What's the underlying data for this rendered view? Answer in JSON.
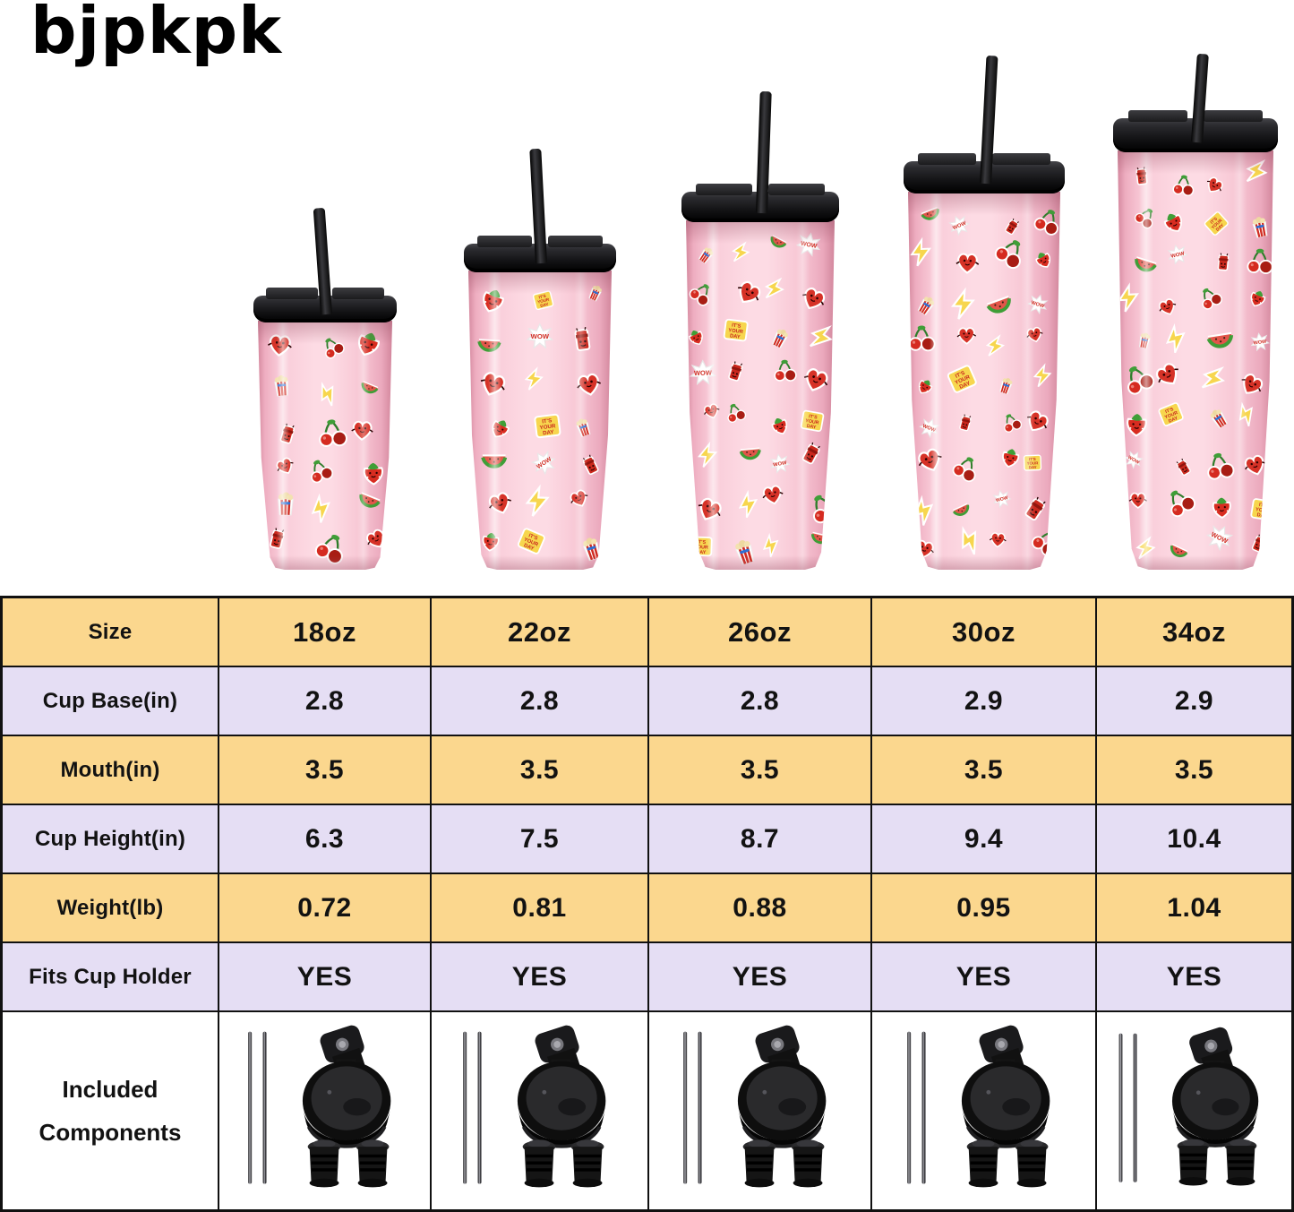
{
  "brand": {
    "logo_text": "bjpkpk"
  },
  "products": [
    {
      "size": "18oz",
      "cup_base_in": "2.8",
      "mouth_in": "3.5",
      "cup_height_in": "6.3",
      "weight_lb": "0.72",
      "fits_cup_holder": "YES"
    },
    {
      "size": "22oz",
      "cup_base_in": "2.8",
      "mouth_in": "3.5",
      "cup_height_in": "7.5",
      "weight_lb": "0.81",
      "fits_cup_holder": "YES"
    },
    {
      "size": "26oz",
      "cup_base_in": "2.8",
      "mouth_in": "3.5",
      "cup_height_in": "8.7",
      "weight_lb": "0.88",
      "fits_cup_holder": "YES"
    },
    {
      "size": "30oz",
      "cup_base_in": "2.9",
      "mouth_in": "3.5",
      "cup_height_in": "9.4",
      "weight_lb": "0.95",
      "fits_cup_holder": "YES"
    },
    {
      "size": "34oz",
      "cup_base_in": "2.9",
      "mouth_in": "3.5",
      "cup_height_in": "10.4",
      "weight_lb": "1.04",
      "fits_cup_holder": "YES"
    }
  ],
  "table": {
    "rows": [
      {
        "label": "Size",
        "key": "size"
      },
      {
        "label": "Cup Base(in)",
        "key": "cup_base_in"
      },
      {
        "label": "Mouth(in)",
        "key": "mouth_in"
      },
      {
        "label": "Cup Height(in)",
        "key": "cup_height_in"
      },
      {
        "label": "Weight(lb)",
        "key": "weight_lb"
      },
      {
        "label": "Fits Cup Holder",
        "key": "fits_cup_holder"
      }
    ],
    "included_row": {
      "label_lines": [
        "Included",
        "Components"
      ],
      "icons": [
        "metal-straws-icon",
        "flip-lid-icon",
        "straw-stoppers-icon"
      ]
    }
  },
  "tumbler": {
    "description": "pink stainless tumbler with black flip-straw lid and fruit-character sticker pattern",
    "sticker_types": [
      "heart-character",
      "cherry",
      "strawberry-character",
      "its-your-day-badge",
      "popcorn-box",
      "lightning-bolt",
      "watermelon",
      "wow-badge",
      "soda-can-character"
    ],
    "badges": {
      "wow": "WOW",
      "day_lines": [
        "IT'S",
        "YOUR",
        "DAY"
      ]
    }
  },
  "colors": {
    "row_yellow": "#fbd78e",
    "row_lavender": "#e5def4",
    "table_border": "#111111",
    "body_pink": "#f9cdda",
    "lid_black": "#1b1b1d",
    "sticker_red": "#d02c22",
    "sticker_green": "#3f9e37",
    "sticker_yellow": "#f7d64e",
    "text": "#121212",
    "background": "#ffffff"
  }
}
